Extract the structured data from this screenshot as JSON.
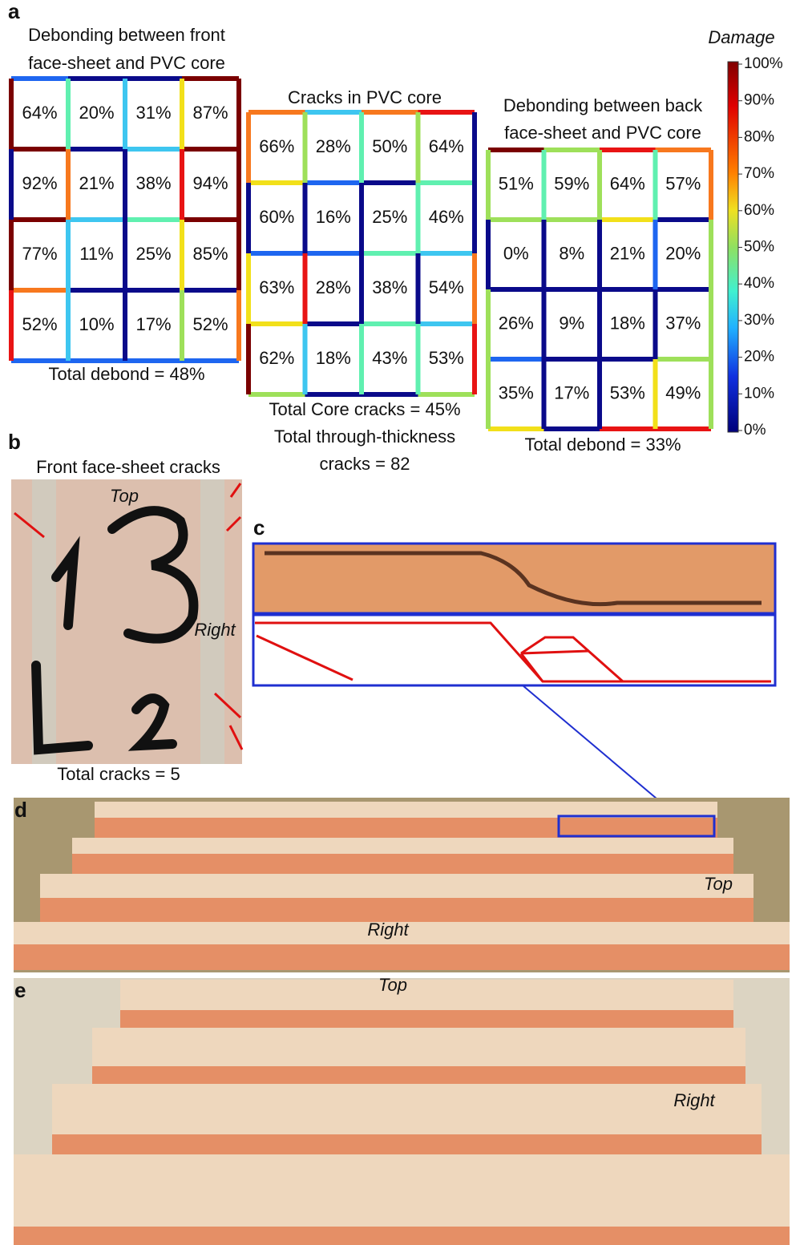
{
  "panel_a": {
    "label": "a",
    "grids": [
      {
        "title": [
          "Debonding between front",
          "face-sheet and PVC core"
        ],
        "cells": [
          [
            "64%",
            "20%",
            "31%",
            "87%"
          ],
          [
            "92%",
            "21%",
            "38%",
            "94%"
          ],
          [
            "77%",
            "11%",
            "25%",
            "85%"
          ],
          [
            "52%",
            "10%",
            "17%",
            "52%"
          ]
        ],
        "total": [
          "Total debond = 48%"
        ]
      },
      {
        "title": [
          "Cracks in PVC core"
        ],
        "cells": [
          [
            "66%",
            "28%",
            "50%",
            "64%"
          ],
          [
            "60%",
            "16%",
            "25%",
            "46%"
          ],
          [
            "63%",
            "28%",
            "38%",
            "54%"
          ],
          [
            "62%",
            "18%",
            "43%",
            "53%"
          ]
        ],
        "total": [
          "Total Core cracks = 45%",
          "Total through-thickness",
          "cracks = 82"
        ]
      },
      {
        "title": [
          "Debonding between back",
          "face-sheet and PVC core"
        ],
        "cells": [
          [
            "51%",
            "59%",
            "64%",
            "57%"
          ],
          [
            "0%",
            "8%",
            "21%",
            "20%"
          ],
          [
            "26%",
            "9%",
            "18%",
            "37%"
          ],
          [
            "35%",
            "17%",
            "53%",
            "49%"
          ]
        ],
        "total": [
          "Total debond = 33%"
        ]
      }
    ],
    "colorbar": {
      "title": "Damage",
      "ticks": [
        "100%",
        "90%",
        "80%",
        "70%",
        "60%",
        "50%",
        "40%",
        "30%",
        "20%",
        "10%",
        "0%"
      ]
    }
  },
  "panel_b": {
    "label": "b",
    "title": "Front face-sheet cracks",
    "annotations": [
      "Top",
      "Right"
    ],
    "total": "Total cracks = 5"
  },
  "panel_c": {
    "label": "c"
  },
  "panel_d": {
    "label": "d",
    "annotations": [
      "Top",
      "Right"
    ]
  },
  "panel_e": {
    "label": "e",
    "annotations": [
      "Top",
      "Right"
    ]
  }
}
